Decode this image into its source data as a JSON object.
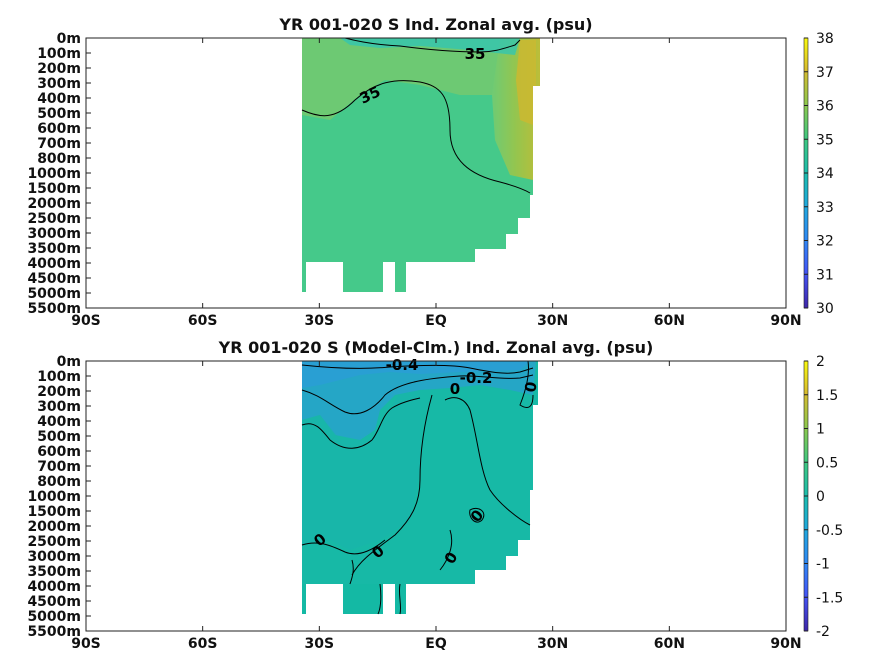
{
  "chart_data": [
    {
      "type": "heatmap",
      "title": "YR 001-020 S Ind. Zonal avg. (psu)",
      "x_ticks": [
        "90S",
        "60S",
        "30S",
        "EQ",
        "30N",
        "60N",
        "90N"
      ],
      "y_ticks": [
        "0m",
        "100m",
        "200m",
        "300m",
        "400m",
        "500m",
        "600m",
        "700m",
        "800m",
        "1000m",
        "1500m",
        "2000m",
        "2500m",
        "3000m",
        "3500m",
        "4000m",
        "4500m",
        "5000m",
        "5500m"
      ],
      "xlim": [
        -90,
        90
      ],
      "colorbar": {
        "range": [
          30,
          38
        ],
        "ticks": [
          "30",
          "31",
          "32",
          "33",
          "34",
          "35",
          "36",
          "37",
          "38"
        ]
      },
      "contour_labels": [
        "35",
        "35"
      ],
      "colors": {
        "deep": "#3fcb86",
        "mid": "#5cc98a",
        "upper": "#79cc70",
        "north": "#a3c346",
        "max": "#c5b933"
      }
    },
    {
      "type": "heatmap",
      "title": "YR 001-020 S (Model-Clm.) Ind. Zonal avg. (psu)",
      "x_ticks": [
        "90S",
        "60S",
        "30S",
        "EQ",
        "30N",
        "60N",
        "90N"
      ],
      "y_ticks": [
        "0m",
        "100m",
        "200m",
        "300m",
        "400m",
        "500m",
        "600m",
        "700m",
        "800m",
        "1000m",
        "1500m",
        "2000m",
        "2500m",
        "3000m",
        "3500m",
        "4000m",
        "4500m",
        "5000m",
        "5500m"
      ],
      "xlim": [
        -90,
        90
      ],
      "colorbar": {
        "range": [
          -2,
          2
        ],
        "ticks": [
          "2",
          "1.5",
          "1",
          "0.5",
          "0",
          "-0.5",
          "-1",
          "-1.5",
          "-2"
        ]
      },
      "contour_labels": [
        "-0.4",
        "-0.2",
        "0",
        "0",
        "0",
        "0",
        "0",
        "0"
      ],
      "colors": {
        "base": "#1bb8ab",
        "low": "#2aa8c2",
        "lower": "#239fd0",
        "zero": "#14b9a4"
      }
    }
  ]
}
